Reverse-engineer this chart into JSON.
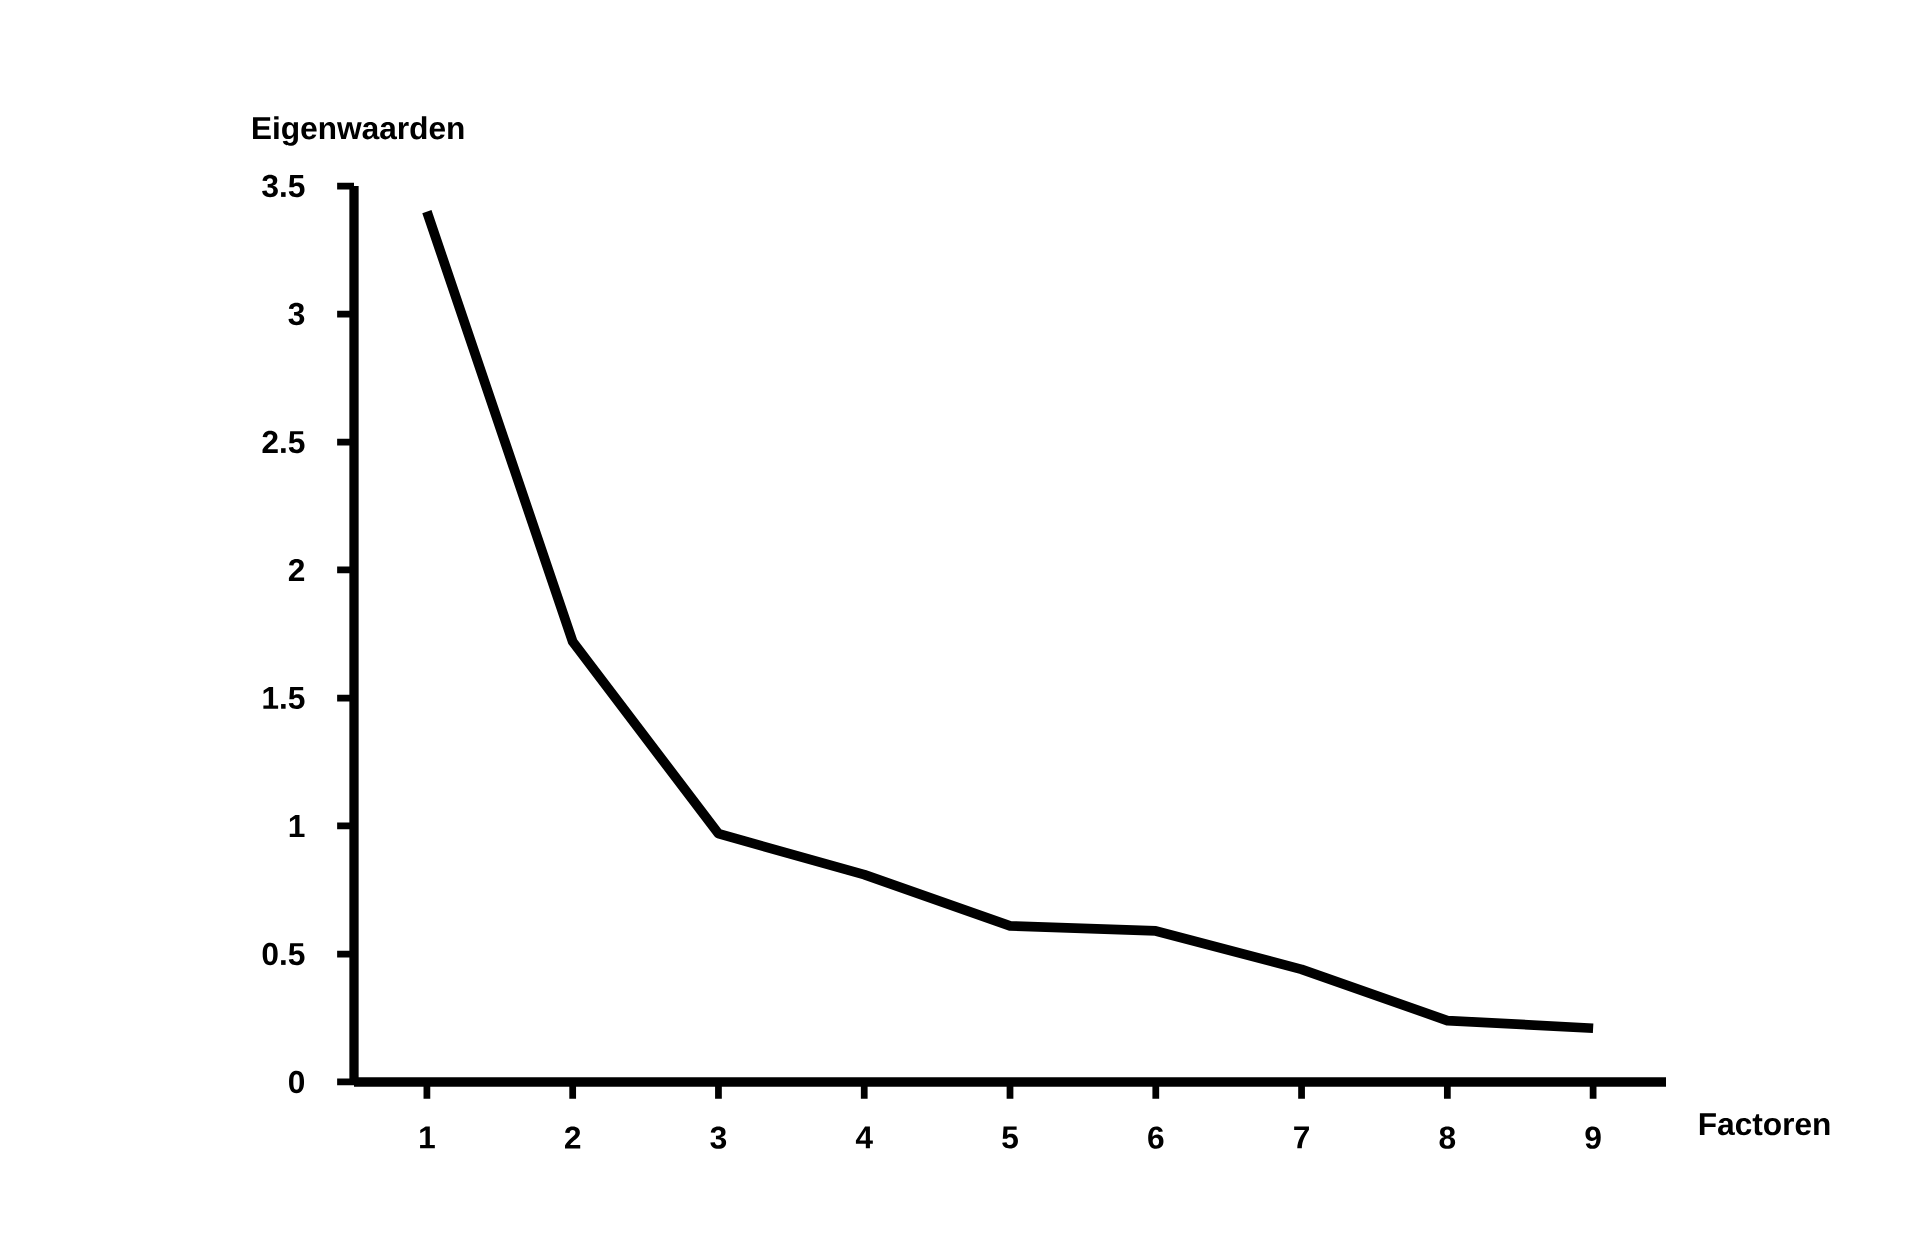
{
  "chart_data": {
    "type": "line",
    "xlabel": "Factoren",
    "ylabel": "Eigenwaarden",
    "x": [
      1,
      2,
      3,
      4,
      5,
      6,
      7,
      8,
      9
    ],
    "series": [
      {
        "color": "#000000",
        "values": [
          3.4,
          1.72,
          0.97,
          0.81,
          0.61,
          0.59,
          0.44,
          0.24,
          0.21
        ]
      }
    ],
    "xlim": [
      0.5,
      9.5
    ],
    "ylim": [
      0,
      3.5
    ],
    "xticks": [
      1,
      2,
      3,
      4,
      5,
      6,
      7,
      8,
      9
    ],
    "yticks": [
      0,
      0.5,
      1,
      1.5,
      2,
      2.5,
      3,
      3.5
    ],
    "grid": false,
    "marker": "none",
    "line_style": "solid"
  }
}
